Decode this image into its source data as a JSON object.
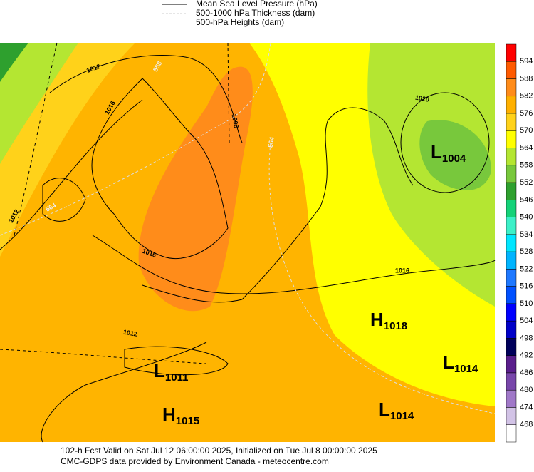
{
  "legend": [
    "Mean Sea Level Pressure (hPa)",
    "500-1000 hPa Thickness (dam)",
    "500-hPa Heights (dam)"
  ],
  "colorbar": {
    "labels": [
      594,
      588,
      582,
      576,
      570,
      564,
      558,
      552,
      546,
      540,
      534,
      528,
      522,
      516,
      510,
      504,
      498,
      492,
      486,
      480,
      474,
      468
    ],
    "colors": [
      "#ff0000",
      "#ff5a00",
      "#ff8c1a",
      "#ffb000",
      "#ffd21a",
      "#ffff00",
      "#b4e632",
      "#78c83c",
      "#2ea02e",
      "#14d278",
      "#3cf0c8",
      "#00e6ff",
      "#00b4ff",
      "#1e78ff",
      "#0050ff",
      "#0000ff",
      "#0000c8",
      "#00005a",
      "#5a1e8c",
      "#7846aa",
      "#a078c8",
      "#d2c3e6",
      "#ffffff"
    ]
  },
  "centers": [
    {
      "letter": "L",
      "value": 1004
    },
    {
      "letter": "H",
      "value": 1018
    },
    {
      "letter": "L",
      "value": 1011
    },
    {
      "letter": "L",
      "value": 1014
    },
    {
      "letter": "H",
      "value": 1015
    },
    {
      "letter": "L",
      "value": 1014
    }
  ],
  "contour_labels": [
    1012,
    1016,
    1020,
    1008,
    1012,
    1016,
    1016,
    1012,
    564,
    564,
    558
  ],
  "footer": [
    "102-h Fcst Valid on Sat Jul 12 06:00:00 2025, Initialized on Tue Jul  8 00:00:00 2025",
    "CMC-GDPS data provided by Environment Canada - meteocentre.com"
  ]
}
